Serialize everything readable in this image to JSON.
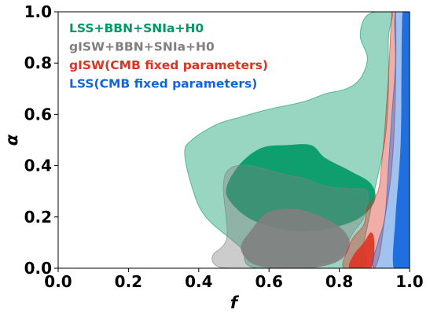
{
  "chart_data": {
    "type": "contour",
    "xlabel": "f",
    "ylabel": "α",
    "xlim": [
      0.0,
      1.0
    ],
    "ylim": [
      0.0,
      1.0
    ],
    "x_ticks": [
      "0.0",
      "0.2",
      "0.4",
      "0.6",
      "0.8",
      "1.0"
    ],
    "y_ticks": [
      "0.0",
      "0.2",
      "0.4",
      "0.6",
      "0.8",
      "1.0"
    ],
    "grid": false,
    "legend_position": "top-left",
    "series": [
      {
        "name": "LSS+BBN+SNIa+H0",
        "color": "#009966",
        "outer_contour": [
          [
            0.565,
            0.0
          ],
          [
            0.52,
            0.08
          ],
          [
            0.42,
            0.2
          ],
          [
            0.38,
            0.32
          ],
          [
            0.36,
            0.45
          ],
          [
            0.38,
            0.5
          ],
          [
            0.45,
            0.56
          ],
          [
            0.52,
            0.59
          ],
          [
            0.6,
            0.62
          ],
          [
            0.7,
            0.65
          ],
          [
            0.76,
            0.68
          ],
          [
            0.82,
            0.7
          ],
          [
            0.86,
            0.74
          ],
          [
            0.88,
            0.82
          ],
          [
            0.86,
            0.9
          ],
          [
            0.87,
            0.97
          ],
          [
            0.9,
            1.0
          ],
          [
            0.95,
            1.0
          ],
          [
            0.94,
            0.9
          ],
          [
            0.94,
            0.7
          ],
          [
            0.93,
            0.5
          ],
          [
            0.9,
            0.3
          ],
          [
            0.87,
            0.1
          ],
          [
            0.85,
            0.0
          ]
        ],
        "inner_contour": [
          [
            0.48,
            0.32
          ],
          [
            0.52,
            0.41
          ],
          [
            0.58,
            0.47
          ],
          [
            0.65,
            0.48
          ],
          [
            0.72,
            0.48
          ],
          [
            0.76,
            0.43
          ],
          [
            0.83,
            0.38
          ],
          [
            0.89,
            0.33
          ],
          [
            0.9,
            0.26
          ],
          [
            0.85,
            0.19
          ],
          [
            0.75,
            0.15
          ],
          [
            0.65,
            0.15
          ],
          [
            0.55,
            0.19
          ],
          [
            0.49,
            0.26
          ]
        ]
      },
      {
        "name": "gISW+BBN+SNIa+H0",
        "color": "#808080",
        "outer_contour": [
          [
            0.47,
            0.32
          ],
          [
            0.49,
            0.39
          ],
          [
            0.55,
            0.4
          ],
          [
            0.63,
            0.37
          ],
          [
            0.7,
            0.35
          ],
          [
            0.76,
            0.32
          ],
          [
            0.83,
            0.31
          ],
          [
            0.88,
            0.3
          ],
          [
            0.87,
            0.2
          ],
          [
            0.84,
            0.14
          ],
          [
            0.8,
            0.05
          ],
          [
            0.75,
            0.02
          ],
          [
            0.68,
            0.0
          ],
          [
            0.5,
            0.0
          ],
          [
            0.45,
            0.01
          ],
          [
            0.44,
            0.05
          ],
          [
            0.48,
            0.12
          ]
        ],
        "inner_contour": [
          [
            0.52,
            0.08
          ],
          [
            0.55,
            0.15
          ],
          [
            0.6,
            0.22
          ],
          [
            0.68,
            0.23
          ],
          [
            0.75,
            0.2
          ],
          [
            0.81,
            0.15
          ],
          [
            0.83,
            0.09
          ],
          [
            0.8,
            0.03
          ],
          [
            0.72,
            0.0
          ],
          [
            0.62,
            0.0
          ],
          [
            0.55,
            0.02
          ]
        ]
      },
      {
        "name": "gISW(CMB fixed parameters)",
        "color": "#dd3322",
        "outer_contour": [
          [
            0.815,
            0.0
          ],
          [
            0.82,
            0.06
          ],
          [
            0.84,
            0.12
          ],
          [
            0.87,
            0.17
          ],
          [
            0.88,
            0.24
          ],
          [
            0.91,
            0.3
          ],
          [
            0.92,
            0.4
          ],
          [
            0.93,
            0.55
          ],
          [
            0.94,
            0.75
          ],
          [
            0.95,
            1.0
          ],
          [
            0.96,
            1.0
          ],
          [
            0.96,
            0.7
          ],
          [
            0.95,
            0.4
          ],
          [
            0.93,
            0.2
          ],
          [
            0.9,
            0.0
          ]
        ],
        "inner_contour": [
          [
            0.83,
            0.0
          ],
          [
            0.84,
            0.05
          ],
          [
            0.87,
            0.1
          ],
          [
            0.89,
            0.14
          ],
          [
            0.9,
            0.1
          ],
          [
            0.89,
            0.0
          ]
        ]
      },
      {
        "name": "LSS(CMB fixed parameters)",
        "color": "#1166dd",
        "outer_contour": [
          [
            0.9,
            0.0
          ],
          [
            0.91,
            0.1
          ],
          [
            0.93,
            0.2
          ],
          [
            0.94,
            0.4
          ],
          [
            0.95,
            0.6
          ],
          [
            0.96,
            0.8
          ],
          [
            0.96,
            1.0
          ],
          [
            1.0,
            1.0
          ],
          [
            1.0,
            0.0
          ]
        ],
        "inner_contour": [
          [
            0.955,
            0.0
          ],
          [
            0.96,
            0.2
          ],
          [
            0.975,
            0.5
          ],
          [
            0.98,
            1.0
          ],
          [
            1.0,
            1.0
          ],
          [
            1.0,
            0.0
          ]
        ]
      }
    ]
  }
}
